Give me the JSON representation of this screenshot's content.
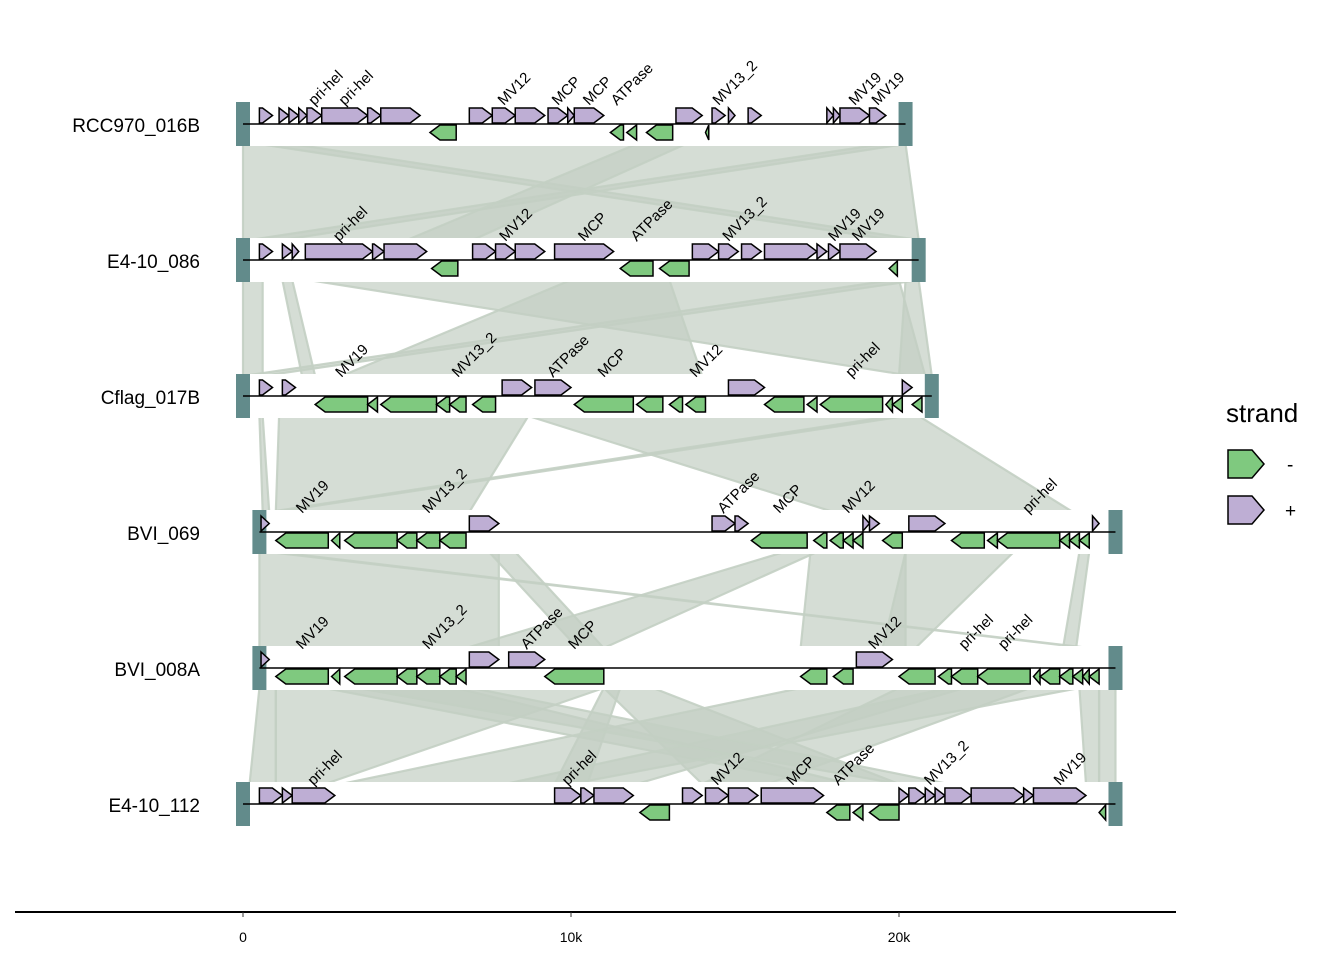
{
  "chart_data": {
    "type": "gene-arrow-map",
    "xlabel": "",
    "ylabel": "",
    "xlim": [
      -7.4,
      28.3
    ],
    "x_unit": "kb",
    "x_ticks": [
      0,
      10,
      20
    ],
    "x_tick_labels": [
      "0",
      "10k",
      "20k"
    ],
    "legend": {
      "title": "strand",
      "position": "right",
      "entries": [
        {
          "label": "-",
          "color": "#7FC97F"
        },
        {
          "label": "+",
          "color": "#BEAED4"
        }
      ]
    },
    "colors": {
      "minus": "#7FC97F",
      "plus": "#BEAED4",
      "bar": "#628B8B",
      "link": "#C3CFC3"
    },
    "genomes": [
      {
        "name": "RCC970_016B",
        "range": [
          0,
          20.2
        ],
        "genes": [
          [
            0.5,
            0.9,
            "+",
            ""
          ],
          [
            1.1,
            1.4,
            "+",
            ""
          ],
          [
            1.4,
            1.7,
            "+",
            ""
          ],
          [
            1.7,
            1.95,
            "+",
            ""
          ],
          [
            1.95,
            2.4,
            "+",
            "pri-hel"
          ],
          [
            2.4,
            3.8,
            "+",
            "pri-hel"
          ],
          [
            3.8,
            4.2,
            "+",
            ""
          ],
          [
            4.2,
            5.4,
            "+",
            ""
          ],
          [
            5.7,
            6.5,
            "-",
            ""
          ],
          [
            6.9,
            7.6,
            "+",
            ""
          ],
          [
            7.6,
            8.3,
            "+",
            "MV12"
          ],
          [
            8.3,
            9.2,
            "+",
            ""
          ],
          [
            9.3,
            9.9,
            "+",
            "MCP"
          ],
          [
            9.9,
            10.1,
            "+",
            ""
          ],
          [
            10.1,
            11.0,
            "+",
            "MCP"
          ],
          [
            11.2,
            11.6,
            "-",
            "ATPase"
          ],
          [
            11.7,
            12.0,
            "-",
            ""
          ],
          [
            12.3,
            13.1,
            "-",
            ""
          ],
          [
            13.2,
            14.0,
            "+",
            ""
          ],
          [
            14.1,
            14.2,
            "-",
            ""
          ],
          [
            14.3,
            14.7,
            "+",
            "MV13_2"
          ],
          [
            14.8,
            15.0,
            "+",
            ""
          ],
          [
            15.4,
            15.8,
            "+",
            ""
          ],
          [
            17.8,
            18.0,
            "+",
            ""
          ],
          [
            18.0,
            18.2,
            "+",
            ""
          ],
          [
            18.2,
            19.1,
            "+",
            "MV19"
          ],
          [
            19.1,
            19.6,
            "+",
            "MV19"
          ]
        ]
      },
      {
        "name": "E4-10_086",
        "range": [
          0,
          20.6
        ],
        "genes": [
          [
            0.5,
            0.9,
            "+",
            ""
          ],
          [
            1.2,
            1.5,
            "+",
            ""
          ],
          [
            1.5,
            1.7,
            "+",
            ""
          ],
          [
            1.9,
            3.95,
            "+",
            "pri-hel"
          ],
          [
            3.95,
            4.3,
            "+",
            ""
          ],
          [
            4.3,
            5.6,
            "+",
            ""
          ],
          [
            5.75,
            6.55,
            "-",
            ""
          ],
          [
            7.0,
            7.7,
            "+",
            ""
          ],
          [
            7.7,
            8.3,
            "+",
            "MV12"
          ],
          [
            8.3,
            9.2,
            "+",
            ""
          ],
          [
            9.5,
            11.3,
            "+",
            "MCP"
          ],
          [
            11.5,
            12.5,
            "-",
            "ATPase"
          ],
          [
            12.7,
            13.6,
            "-",
            ""
          ],
          [
            13.7,
            14.5,
            "+",
            ""
          ],
          [
            14.5,
            15.1,
            "+",
            "MV13_2"
          ],
          [
            15.2,
            15.8,
            "+",
            ""
          ],
          [
            15.9,
            17.5,
            "+",
            ""
          ],
          [
            17.5,
            17.8,
            "+",
            ""
          ],
          [
            17.85,
            18.2,
            "+",
            "MV19"
          ],
          [
            18.2,
            19.3,
            "+",
            "MV19"
          ],
          [
            19.7,
            19.95,
            "-",
            ""
          ]
        ]
      },
      {
        "name": "Cflag_017B",
        "range": [
          0,
          21.0
        ],
        "genes": [
          [
            0.5,
            0.9,
            "+",
            ""
          ],
          [
            1.2,
            1.6,
            "+",
            ""
          ],
          [
            2.2,
            3.8,
            "-",
            "MV19"
          ],
          [
            3.8,
            4.1,
            "-",
            ""
          ],
          [
            4.2,
            5.9,
            "-",
            ""
          ],
          [
            5.9,
            6.3,
            "-",
            ""
          ],
          [
            6.3,
            6.8,
            "-",
            "MV13_2"
          ],
          [
            7.0,
            7.7,
            "-",
            ""
          ],
          [
            7.9,
            8.8,
            "+",
            ""
          ],
          [
            8.9,
            10.0,
            "+",
            "ATPase"
          ],
          [
            10.1,
            11.9,
            "-",
            "MCP"
          ],
          [
            12.0,
            12.8,
            "-",
            ""
          ],
          [
            13.0,
            13.4,
            "-",
            ""
          ],
          [
            13.5,
            14.1,
            "-",
            "MV12"
          ],
          [
            14.8,
            15.9,
            "+",
            ""
          ],
          [
            15.9,
            17.1,
            "-",
            ""
          ],
          [
            17.2,
            17.5,
            "-",
            ""
          ],
          [
            17.6,
            19.5,
            "-",
            "pri-hel"
          ],
          [
            19.6,
            19.8,
            "-",
            ""
          ],
          [
            19.8,
            20.1,
            "-",
            ""
          ],
          [
            20.1,
            20.4,
            "+",
            ""
          ],
          [
            20.4,
            20.7,
            "-",
            ""
          ]
        ]
      },
      {
        "name": "BVI_069",
        "range": [
          0.5,
          26.6
        ],
        "genes": [
          [
            0.55,
            0.8,
            "+",
            ""
          ],
          [
            1.0,
            2.6,
            "-",
            "MV19"
          ],
          [
            2.7,
            2.95,
            "-",
            ""
          ],
          [
            3.1,
            4.7,
            "-",
            ""
          ],
          [
            4.7,
            5.3,
            "-",
            ""
          ],
          [
            5.3,
            6.0,
            "-",
            "MV13_2"
          ],
          [
            6.0,
            6.8,
            "-",
            ""
          ],
          [
            6.9,
            7.8,
            "+",
            ""
          ],
          [
            14.3,
            15.0,
            "+",
            "ATPase"
          ],
          [
            15.0,
            15.4,
            "+",
            ""
          ],
          [
            15.5,
            17.2,
            "-",
            "MCP"
          ],
          [
            17.4,
            17.8,
            "-",
            ""
          ],
          [
            17.9,
            18.3,
            "-",
            ""
          ],
          [
            18.3,
            18.6,
            "-",
            "MV12"
          ],
          [
            18.6,
            18.9,
            "-",
            ""
          ],
          [
            18.9,
            19.1,
            "+",
            ""
          ],
          [
            19.1,
            19.4,
            "+",
            ""
          ],
          [
            19.5,
            20.1,
            "-",
            ""
          ],
          [
            20.3,
            21.4,
            "+",
            ""
          ],
          [
            21.6,
            22.6,
            "-",
            ""
          ],
          [
            22.7,
            23.0,
            "-",
            ""
          ],
          [
            23.0,
            24.9,
            "-",
            "pri-hel"
          ],
          [
            24.9,
            25.2,
            "-",
            ""
          ],
          [
            25.2,
            25.5,
            "-",
            ""
          ],
          [
            25.5,
            25.8,
            "-",
            ""
          ],
          [
            25.9,
            26.1,
            "+",
            ""
          ]
        ]
      },
      {
        "name": "BVI_008A",
        "range": [
          0.5,
          26.6
        ],
        "genes": [
          [
            0.55,
            0.8,
            "+",
            ""
          ],
          [
            1.0,
            2.6,
            "-",
            "MV19"
          ],
          [
            2.7,
            2.95,
            "-",
            ""
          ],
          [
            3.1,
            4.7,
            "-",
            ""
          ],
          [
            4.7,
            5.3,
            "-",
            ""
          ],
          [
            5.3,
            6.0,
            "-",
            "MV13_2"
          ],
          [
            6.0,
            6.5,
            "-",
            ""
          ],
          [
            6.5,
            6.8,
            "-",
            ""
          ],
          [
            6.9,
            7.8,
            "+",
            ""
          ],
          [
            8.1,
            9.2,
            "+",
            "ATPase"
          ],
          [
            9.2,
            11.0,
            "-",
            "MCP"
          ],
          [
            17.0,
            17.8,
            "-",
            ""
          ],
          [
            18.0,
            18.6,
            "-",
            ""
          ],
          [
            18.7,
            19.8,
            "+",
            "MV12"
          ],
          [
            20.0,
            21.1,
            "-",
            ""
          ],
          [
            21.2,
            21.6,
            "-",
            ""
          ],
          [
            21.6,
            22.4,
            "-",
            "pri-hel"
          ],
          [
            22.4,
            24.0,
            "-",
            "pri-hel"
          ],
          [
            24.1,
            24.3,
            "-",
            ""
          ],
          [
            24.3,
            24.9,
            "-",
            ""
          ],
          [
            24.9,
            25.3,
            "-",
            ""
          ],
          [
            25.3,
            25.6,
            "-",
            ""
          ],
          [
            25.6,
            25.8,
            "-",
            ""
          ],
          [
            25.8,
            26.1,
            "-",
            ""
          ]
        ]
      },
      {
        "name": "E4-10_112",
        "range": [
          0,
          26.6
        ],
        "genes": [
          [
            0.5,
            1.2,
            "+",
            ""
          ],
          [
            1.2,
            1.5,
            "+",
            ""
          ],
          [
            1.5,
            2.8,
            "+",
            "pri-hel"
          ],
          [
            9.5,
            10.3,
            "+",
            "pri-hel"
          ],
          [
            10.3,
            10.7,
            "+",
            ""
          ],
          [
            10.7,
            11.9,
            "+",
            ""
          ],
          [
            12.1,
            13.0,
            "-",
            ""
          ],
          [
            13.4,
            14.0,
            "+",
            ""
          ],
          [
            14.1,
            14.8,
            "+",
            "MV12"
          ],
          [
            14.8,
            15.7,
            "+",
            ""
          ],
          [
            15.8,
            17.7,
            "+",
            "MCP"
          ],
          [
            17.8,
            18.5,
            "-",
            "ATPase"
          ],
          [
            18.6,
            18.9,
            "-",
            ""
          ],
          [
            19.1,
            20.0,
            "-",
            ""
          ],
          [
            20.0,
            20.3,
            "+",
            ""
          ],
          [
            20.3,
            20.8,
            "+",
            ""
          ],
          [
            20.8,
            21.1,
            "+",
            "MV13_2"
          ],
          [
            21.1,
            21.4,
            "+",
            ""
          ],
          [
            21.4,
            22.2,
            "+",
            ""
          ],
          [
            22.2,
            23.8,
            "+",
            ""
          ],
          [
            23.8,
            24.1,
            "+",
            ""
          ],
          [
            24.1,
            25.7,
            "+",
            "MV19"
          ],
          [
            26.1,
            26.3,
            "-",
            ""
          ]
        ]
      }
    ],
    "links": [
      {
        "between": [
          0,
          1
        ],
        "spans": [
          [
            0,
            20.2,
            0,
            20.6
          ],
          [
            0.5,
            1.5,
            19.8,
            20.6
          ],
          [
            19.5,
            20.2,
            0.2,
            1.2
          ],
          [
            12.0,
            13.5,
            5.0,
            7.0
          ]
        ]
      },
      {
        "between": [
          1,
          2
        ],
        "spans": [
          [
            0,
            0.6,
            0,
            0.6
          ],
          [
            1.2,
            1.5,
            1.8,
            2.2
          ],
          [
            2.0,
            20.0,
            20.4,
            20.8
          ],
          [
            19.8,
            20.6,
            0.0,
            0.6
          ],
          [
            10.0,
            13.0,
            3.0,
            14.0
          ],
          [
            20.2,
            20.6,
            20.0,
            21.0
          ]
        ]
      },
      {
        "between": [
          2,
          3
        ],
        "spans": [
          [
            0.5,
            0.6,
            0.6,
            0.8
          ],
          [
            1.1,
            8.7,
            1.0,
            6.9
          ],
          [
            8.7,
            20.6,
            18.0,
            25.3
          ],
          [
            19.8,
            20.2,
            0.8,
            1.0
          ]
        ]
      },
      {
        "between": [
          3,
          4
        ],
        "spans": [
          [
            0.5,
            7.8,
            0.5,
            7.8
          ],
          [
            7.5,
            8.3,
            10.2,
            11.0
          ],
          [
            16.5,
            17.5,
            6.8,
            11.0
          ],
          [
            17.3,
            20.2,
            17.0,
            20.2
          ],
          [
            20.2,
            23.5,
            19.5,
            20.5
          ],
          [
            0.8,
            1.0,
            25.7,
            25.8
          ],
          [
            25.5,
            25.8,
            25.0,
            25.4
          ]
        ]
      },
      {
        "between": [
          4,
          5
        ],
        "spans": [
          [
            0.5,
            1.0,
            0.2,
            1.0
          ],
          [
            1.0,
            11.0,
            1.0,
            2.5
          ],
          [
            11.0,
            11.5,
            9.5,
            10.5
          ],
          [
            11.0,
            12.5,
            14.0,
            20.0
          ],
          [
            2.5,
            6.5,
            17.7,
            18.5
          ],
          [
            17.0,
            22.0,
            3.0,
            12.0
          ],
          [
            20.0,
            24.0,
            14.0,
            16.0
          ],
          [
            21.5,
            25.5,
            8.0,
            10.0
          ],
          [
            25.5,
            26.1,
            25.7,
            26.1
          ],
          [
            26.1,
            26.6,
            26.1,
            26.6
          ],
          [
            3.5,
            7.0,
            20.0,
            21.5
          ]
        ]
      }
    ]
  }
}
